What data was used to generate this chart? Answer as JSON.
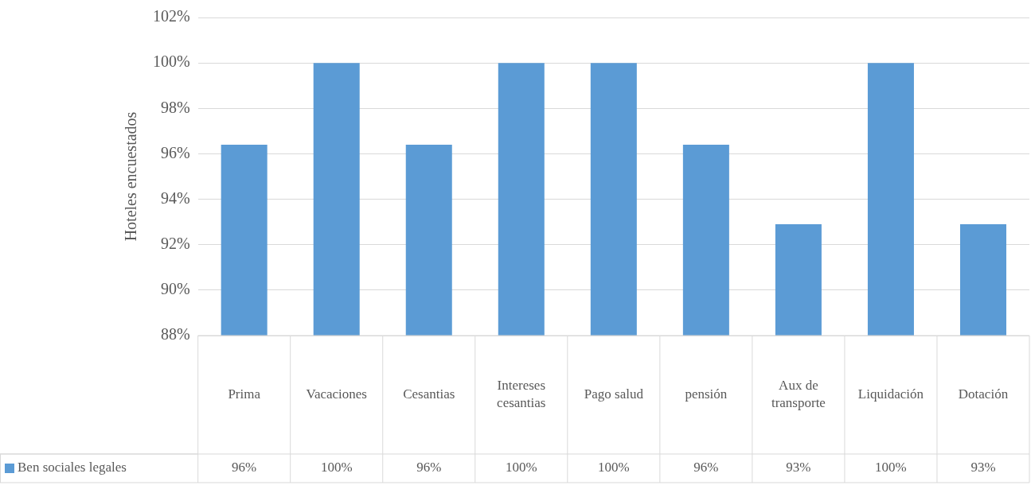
{
  "chart_data": {
    "type": "bar",
    "ylabel": "Hoteles encuestados",
    "categories": [
      "Prima",
      "Vacaciones",
      "Cesantias",
      "Intereses cesantias",
      "Pago salud",
      "pensión",
      "Aux de transporte",
      "Liquidación",
      "Dotación"
    ],
    "series": [
      {
        "name": "Ben sociales legales",
        "color": "#5b9bd5",
        "values": [
          96.4,
          100,
          96.4,
          100,
          100,
          96.4,
          92.9,
          100,
          92.9
        ],
        "value_labels": [
          "96%",
          "100%",
          "96%",
          "100%",
          "100%",
          "96%",
          "93%",
          "100%",
          "93%"
        ]
      }
    ],
    "ylim": [
      88,
      102
    ],
    "yticks": [
      {
        "value": 88,
        "label": "88%"
      },
      {
        "value": 90,
        "label": "90%"
      },
      {
        "value": 92,
        "label": "92%"
      },
      {
        "value": 94,
        "label": "94%"
      },
      {
        "value": 96,
        "label": "96%"
      },
      {
        "value": 98,
        "label": "98%"
      },
      {
        "value": 100,
        "label": "100%"
      },
      {
        "value": 102,
        "label": "102%"
      }
    ],
    "grid": "y",
    "legend": "bottom"
  }
}
